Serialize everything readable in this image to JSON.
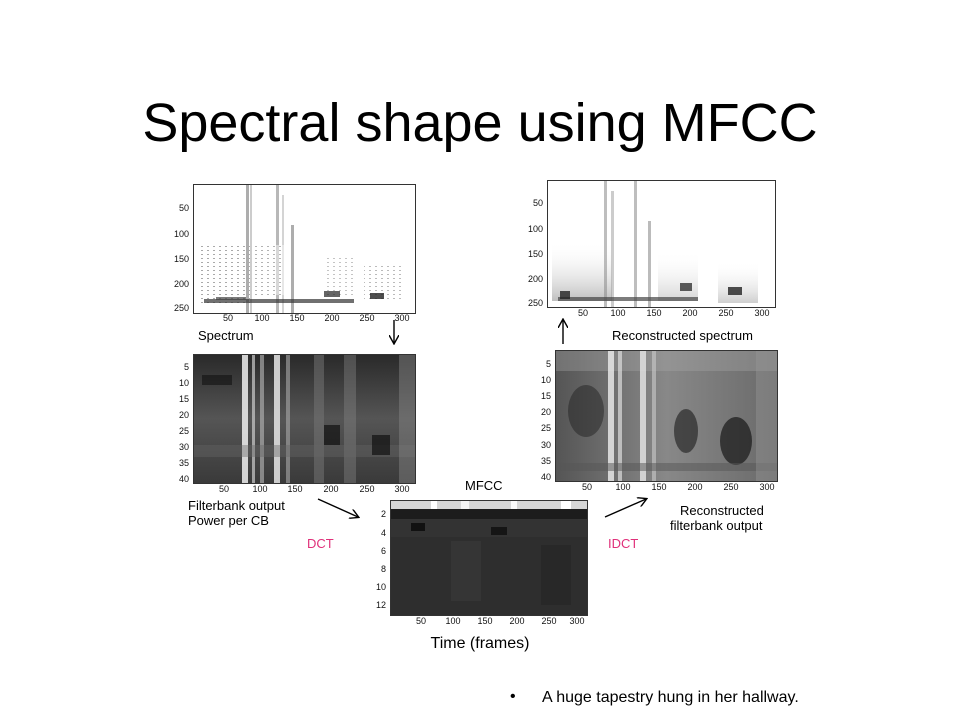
{
  "slide": {
    "title": "Spectral shape using MFCC",
    "axis_label": "Time (frames)",
    "bullet": "A huge tapestry hung in her hallway."
  },
  "diagram": {
    "spectrum": {
      "label": "Spectrum",
      "x_ticks": [
        "50",
        "100",
        "150",
        "200",
        "250",
        "300"
      ],
      "y_ticks": [
        "50",
        "100",
        "150",
        "200",
        "250"
      ]
    },
    "reconstructed_spectrum": {
      "label": "Reconstructed spectrum",
      "x_ticks": [
        "50",
        "100",
        "150",
        "200",
        "250",
        "300"
      ],
      "y_ticks": [
        "50",
        "100",
        "150",
        "200",
        "250"
      ]
    },
    "filterbank": {
      "label_line1": "Filterbank output",
      "label_line2": "Power per CB",
      "x_ticks": [
        "50",
        "100",
        "150",
        "200",
        "250",
        "300"
      ],
      "y_ticks": [
        "5",
        "10",
        "15",
        "20",
        "25",
        "30",
        "35",
        "40"
      ]
    },
    "reconstructed_filterbank": {
      "label_line1": "Reconstructed",
      "label_line2": "filterbank output",
      "x_ticks": [
        "50",
        "100",
        "150",
        "200",
        "250",
        "300"
      ],
      "y_ticks": [
        "5",
        "10",
        "15",
        "20",
        "25",
        "30",
        "35",
        "40"
      ]
    },
    "mfcc": {
      "label": "MFCC",
      "x_ticks": [
        "50",
        "100",
        "150",
        "200",
        "250",
        "300"
      ],
      "y_ticks": [
        "2",
        "4",
        "6",
        "8",
        "10",
        "12"
      ]
    },
    "dct_label": "DCT",
    "idct_label": "IDCT",
    "accent_color": "#e0307a"
  }
}
